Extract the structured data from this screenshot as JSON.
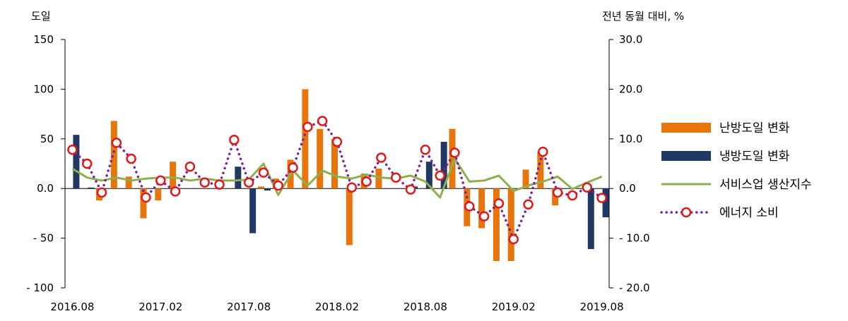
{
  "chart_data": {
    "type": "bar",
    "left_unit_label": "도일",
    "right_unit_label": "전년 동월 대비, %",
    "x_ticks": [
      "2016.08",
      "2017.02",
      "2017.08",
      "2018.02",
      "2018.08",
      "2019.02",
      "2019.08"
    ],
    "left_ticks": [
      "150",
      "100",
      "50",
      "0.0",
      "- 50",
      "- 100"
    ],
    "right_ticks": [
      "30.0",
      "20.0",
      "10.0",
      "0.0",
      "- 10.0",
      "- 20.0"
    ],
    "left_ylim": [
      -100,
      150
    ],
    "right_ylim": [
      -20,
      30
    ],
    "months": [
      "2016.08",
      "2016.09",
      "2016.10",
      "2016.11",
      "2016.12",
      "2017.01",
      "2017.02",
      "2017.03",
      "2017.04",
      "2017.05",
      "2017.06",
      "2017.07",
      "2017.08",
      "2017.09",
      "2017.10",
      "2017.11",
      "2017.12",
      "2018.01",
      "2018.02",
      "2018.03",
      "2018.04",
      "2018.05",
      "2018.06",
      "2018.07",
      "2018.08",
      "2018.09",
      "2018.10",
      "2018.11",
      "2018.12",
      "2019.01",
      "2019.02",
      "2019.03",
      "2019.04",
      "2019.05",
      "2019.06",
      "2019.07",
      "2019.08"
    ],
    "series": [
      {
        "name": "난방도일 변화",
        "axis": "left",
        "kind": "bar",
        "color": "#E8740C",
        "values": [
          0,
          0,
          -12,
          68,
          12,
          -30,
          -12,
          27,
          0,
          0,
          0,
          0,
          0,
          2,
          10,
          29,
          100,
          60,
          50,
          -57,
          15,
          20,
          0,
          0,
          0,
          0,
          60,
          -38,
          -40,
          -73,
          -73,
          19,
          37,
          -17,
          0,
          0,
          0
        ]
      },
      {
        "name": "냉방도일 변화",
        "axis": "left",
        "kind": "bar",
        "color": "#1F3864",
        "values": [
          54,
          1,
          0,
          0,
          0,
          0,
          0,
          0,
          0,
          0,
          0,
          22,
          -45,
          -2,
          0,
          0,
          0,
          0,
          0,
          0,
          0,
          0,
          0,
          2,
          27,
          47,
          0,
          0,
          0,
          0,
          0,
          0,
          0,
          0,
          0,
          -61,
          -29
        ]
      },
      {
        "name": "서비스업 생산지수",
        "axis": "right",
        "kind": "line",
        "color": "#8DB04E",
        "values": [
          4.0,
          2.2,
          1.6,
          2.2,
          1.6,
          2.0,
          2.2,
          2.2,
          1.6,
          2.0,
          1.6,
          1.6,
          1.8,
          5.0,
          -1.3,
          3.6,
          0.6,
          3.6,
          2.4,
          2.0,
          2.8,
          2.2,
          2.0,
          2.6,
          1.4,
          -1.8,
          6.0,
          1.4,
          1.6,
          2.6,
          -0.5,
          0.6,
          1.4,
          2.4,
          -0.1,
          1.2,
          2.4
        ]
      },
      {
        "name": "에너지 소비",
        "axis": "right",
        "kind": "dotted-line-markers",
        "color": "#7B1FA2",
        "values": [
          7.8,
          5.0,
          -0.8,
          9.2,
          6.0,
          -1.8,
          1.6,
          -0.6,
          4.4,
          1.2,
          0.8,
          9.8,
          1.2,
          3.2,
          0.6,
          4.2,
          12.4,
          13.6,
          9.4,
          0.2,
          1.4,
          6.2,
          2.2,
          -0.2,
          7.8,
          2.6,
          7.2,
          -3.6,
          -5.6,
          -3.0,
          -10.2,
          -3.2,
          7.4,
          -0.8,
          -1.4,
          0.2,
          -1.9
        ]
      }
    ]
  },
  "legend": [
    {
      "label": "난방도일 변화",
      "symbol": "bar",
      "color": "#E8740C"
    },
    {
      "label": "냉방도일 변화",
      "symbol": "bar",
      "color": "#1F3864"
    },
    {
      "label": "서비스업 생산지수",
      "symbol": "line",
      "color": "#8DB04E"
    },
    {
      "label": "에너지 소비",
      "symbol": "dotted-marker",
      "color": "#7B1FA2",
      "marker_color": "#E0191B"
    }
  ]
}
